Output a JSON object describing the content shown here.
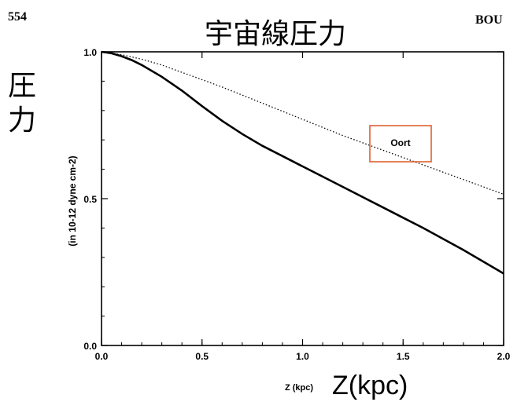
{
  "page": {
    "page_number": "554",
    "running_header": "BOU"
  },
  "chart_data": {
    "type": "line",
    "title": "宇宙線圧力",
    "ylabel_overlay": "圧力",
    "ylabel": "(in 10-12 dyne cm-2)",
    "xlabel": "Z (kpc)",
    "xlabel_overlay": "Z(kpc)",
    "xlim": [
      0.0,
      2.0
    ],
    "ylim": [
      0.0,
      1.0
    ],
    "x_ticks": [
      "0.0",
      "0.5",
      "1.0",
      "1.5",
      "2.0"
    ],
    "y_ticks": [
      "0.0",
      "0.5",
      "1.0"
    ],
    "x_tick_values": [
      0.0,
      0.5,
      1.0,
      1.5,
      2.0
    ],
    "y_tick_values": [
      0.0,
      0.5,
      1.0
    ],
    "annotation": {
      "text": "Oort",
      "x": 1.46,
      "y": 0.715,
      "box_color": "#e06030"
    },
    "grid": false,
    "series": [
      {
        "style": "solid",
        "x": [
          0.0,
          0.05,
          0.1,
          0.15,
          0.2,
          0.3,
          0.4,
          0.5,
          0.6,
          0.7,
          0.8,
          0.9,
          1.0,
          1.2,
          1.4,
          1.6,
          1.8,
          2.0
        ],
        "y": [
          1.0,
          0.995,
          0.985,
          0.972,
          0.955,
          0.915,
          0.868,
          0.815,
          0.765,
          0.72,
          0.68,
          0.645,
          0.61,
          0.54,
          0.47,
          0.4,
          0.325,
          0.245
        ]
      },
      {
        "style": "dotted",
        "x": [
          0.0,
          0.1,
          0.2,
          0.3,
          0.4,
          0.5,
          0.6,
          0.8,
          1.0,
          1.2,
          1.4,
          1.6,
          1.8,
          2.0
        ],
        "y": [
          1.0,
          0.99,
          0.975,
          0.955,
          0.93,
          0.905,
          0.88,
          0.825,
          0.77,
          0.715,
          0.665,
          0.615,
          0.565,
          0.515
        ]
      }
    ]
  }
}
